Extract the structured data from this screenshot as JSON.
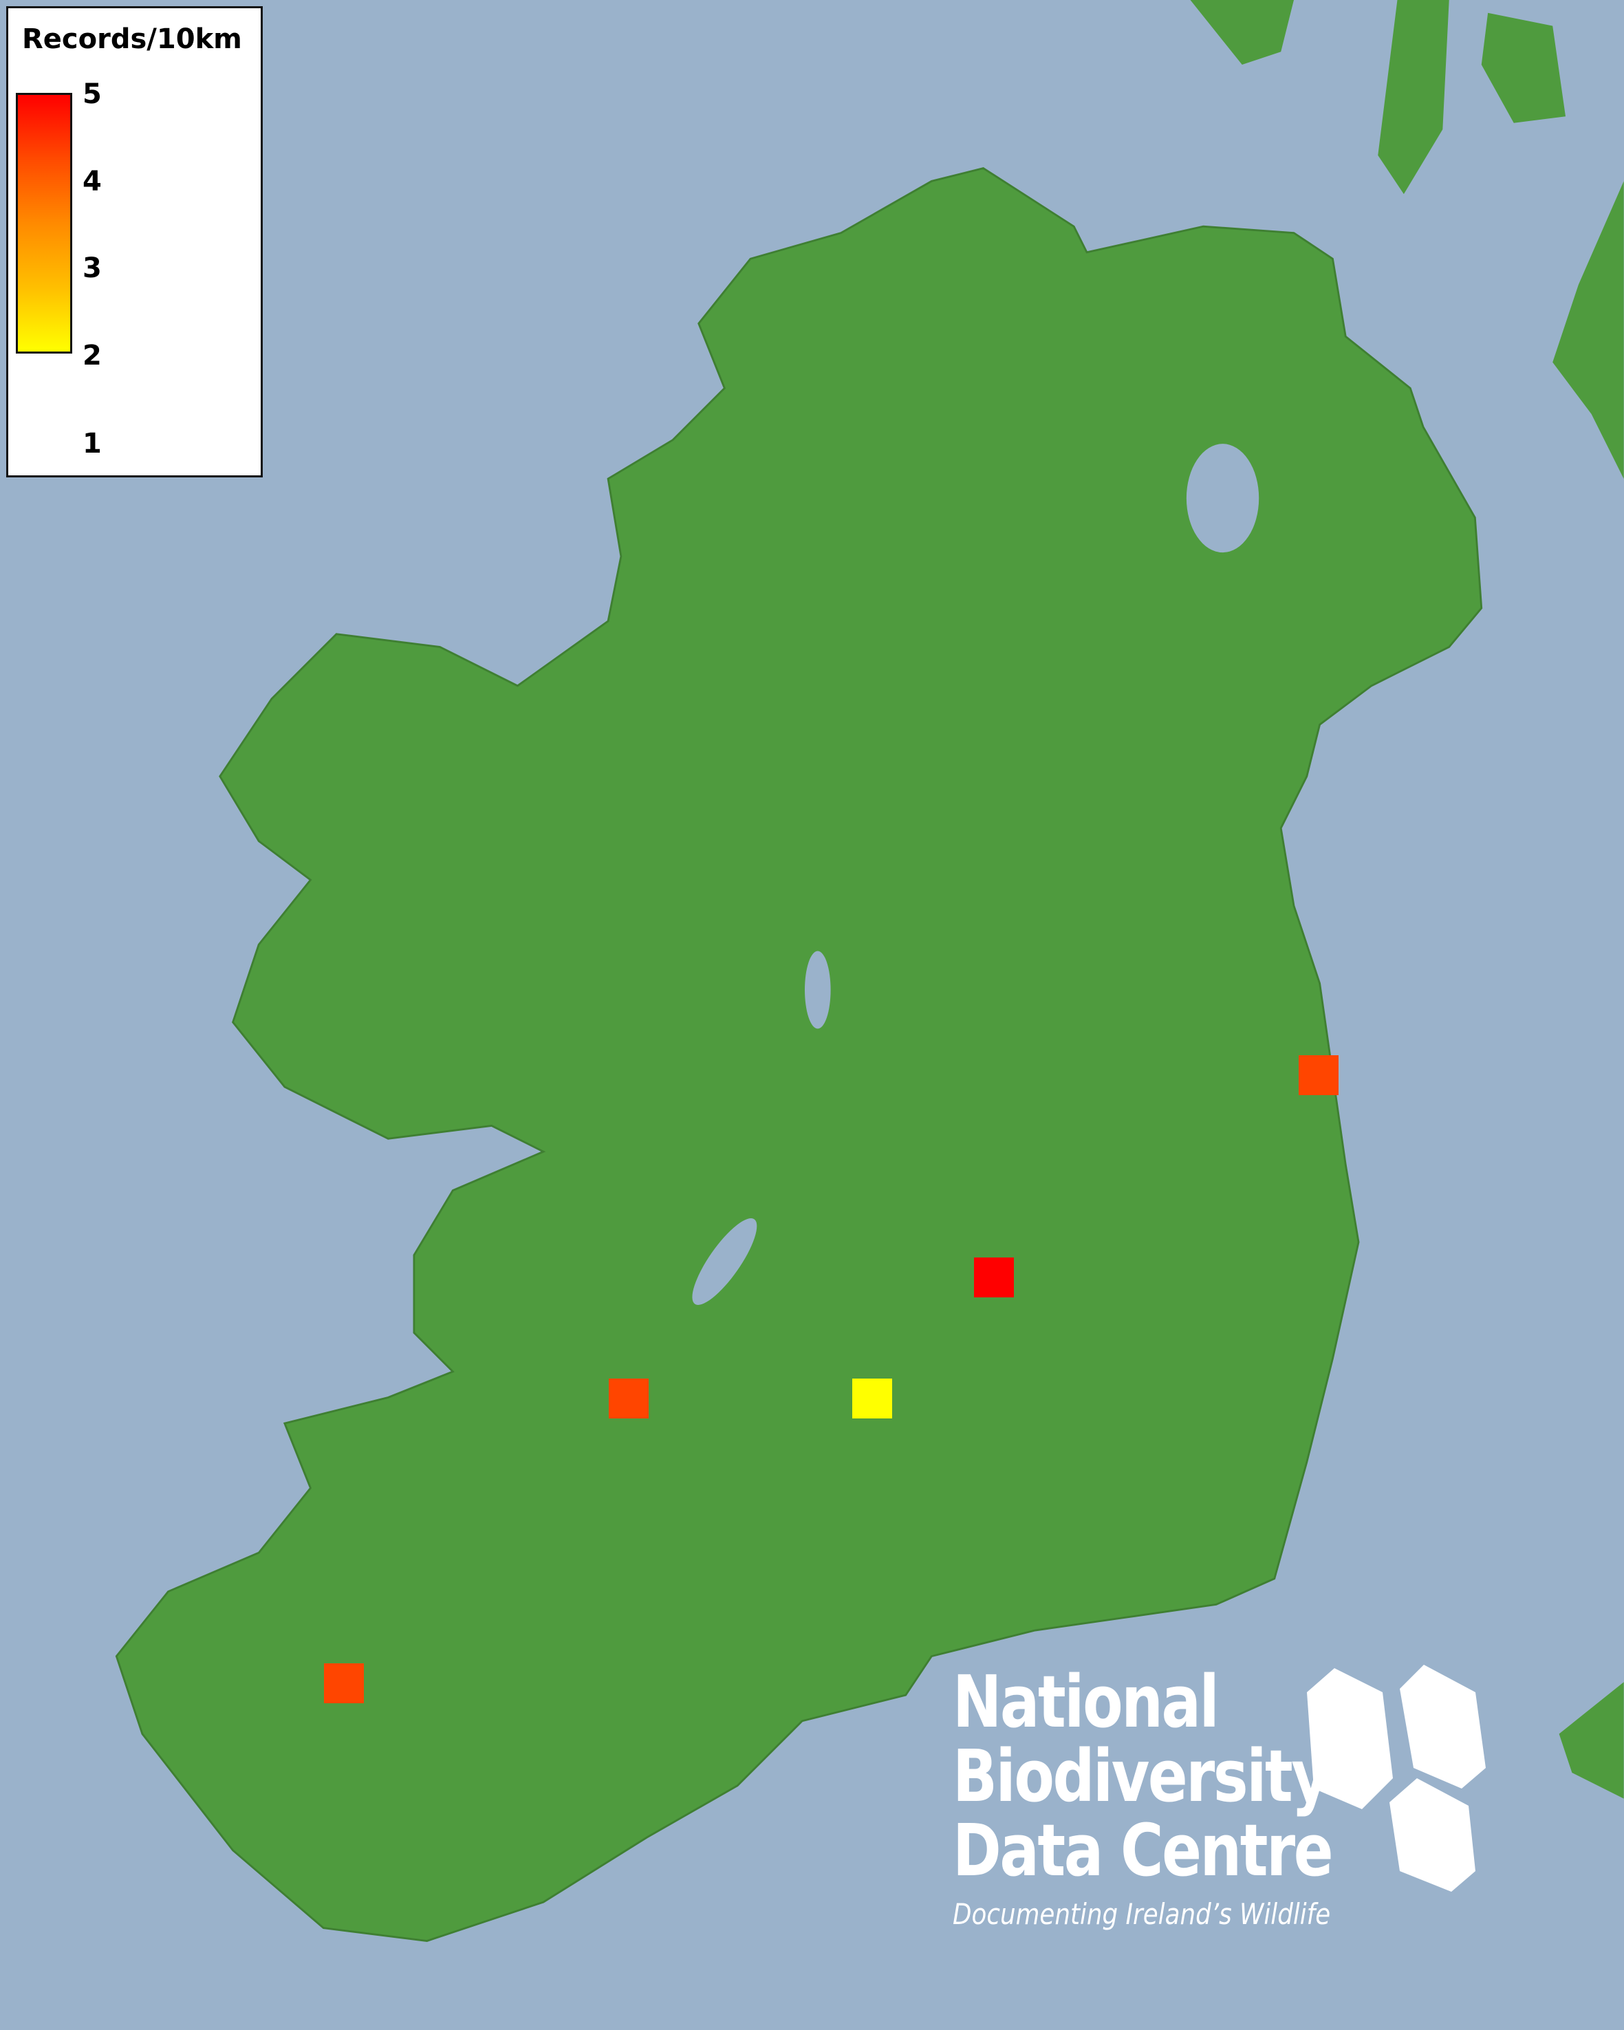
{
  "colors": {
    "sea": "#9ab2cb",
    "land": "#4f9b3e",
    "legend_max": "#ff0000",
    "legend_min": "#ffff00"
  },
  "legend": {
    "title": "Records/10km",
    "ticks": [
      "5",
      "4",
      "3",
      "2",
      "1"
    ],
    "range": [
      1,
      5
    ]
  },
  "records": [
    {
      "location": "east coast (Dublin)",
      "value": 4,
      "color": "#ff4500"
    },
    {
      "location": "midlands",
      "value": 5,
      "color": "#ff0000"
    },
    {
      "location": "Shannon estuary",
      "value": 4,
      "color": "#ff4500"
    },
    {
      "location": "south midlands",
      "value": 1,
      "color": "#ffff00"
    },
    {
      "location": "Kerry",
      "value": 4,
      "color": "#ff4500"
    }
  ],
  "logo": {
    "line1": "National",
    "line2": "Biodiversity",
    "line3": "Data Centre",
    "tagline": "Documenting Ireland’s Wildlife"
  }
}
